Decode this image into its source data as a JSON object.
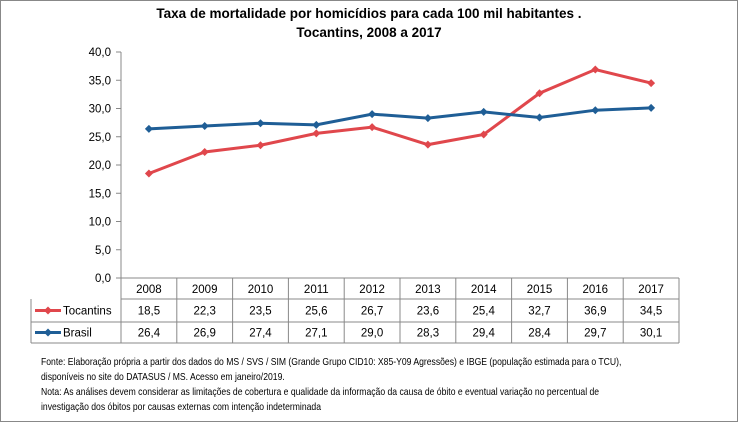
{
  "chart_data": {
    "type": "line",
    "title": "Taxa de mortalidade por homicídios para cada 100 mil habitantes .",
    "subtitle": "Tocantins, 2008 a 2017",
    "categories": [
      "2008",
      "2009",
      "2010",
      "2011",
      "2012",
      "2013",
      "2014",
      "2015",
      "2016",
      "2017"
    ],
    "series": [
      {
        "name": "Tocantins",
        "color": "#e0474c",
        "values": [
          18.5,
          22.3,
          23.5,
          25.6,
          26.7,
          23.6,
          25.4,
          32.7,
          36.9,
          34.5
        ],
        "labels": [
          "18,5",
          "22,3",
          "23,5",
          "25,6",
          "26,7",
          "23,6",
          "25,4",
          "32,7",
          "36,9",
          "34,5"
        ]
      },
      {
        "name": "Brasil",
        "color": "#1f5e96",
        "values": [
          26.4,
          26.9,
          27.4,
          27.1,
          29.0,
          28.3,
          29.4,
          28.4,
          29.7,
          30.1
        ],
        "labels": [
          "26,4",
          "26,9",
          "27,4",
          "27,1",
          "29,0",
          "28,3",
          "29,4",
          "28,4",
          "29,7",
          "30,1"
        ]
      }
    ],
    "ylim": [
      0,
      40
    ],
    "yticks": [
      "0,0",
      "5,0",
      "10,0",
      "15,0",
      "20,0",
      "25,0",
      "30,0",
      "35,0",
      "40,0"
    ],
    "grid": false,
    "legend": "data-table"
  },
  "notes": {
    "fonte1": "Fonte: Elaboração própria a partir dos dados do MS / SVS / SIM (Grande Grupo CID10: X85-Y09 Agressões) e IBGE (população estimada para o TCU),",
    "fonte2": "disponíveis no site do DATASUS / MS. Acesso em janeiro/2019.",
    "nota1": "Nota:  As análises devem considerar as limitações de cobertura e qualidade da informação da causa de óbito e eventual variação no percentual de",
    "nota2": "investigação dos óbitos por causas externas com intenção  indeterminada"
  }
}
